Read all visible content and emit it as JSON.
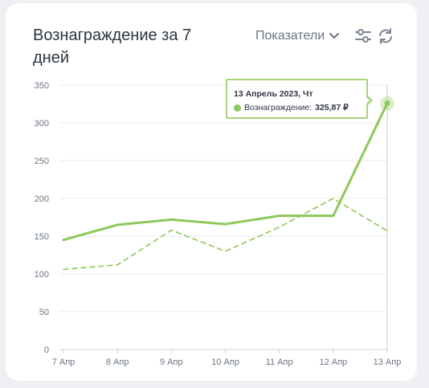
{
  "header": {
    "title": "Вознаграждение за 7 дней",
    "metrics_label": "Показатели"
  },
  "icons": {
    "metrics_chevron": "chevron-down-icon",
    "filter": "sliders-icon",
    "refresh": "refresh-icon"
  },
  "colors": {
    "accent": "#8cc95a",
    "grid": "#e8eaee",
    "axis_text": "#6b7585"
  },
  "tooltip": {
    "date": "13 Апрель 2023, Чт",
    "series_label": "Вознаграждение:",
    "value": "325,87 ₽"
  },
  "chart_data": {
    "type": "line",
    "categories": [
      "7 Апр",
      "8 Апр",
      "9 Апр",
      "10 Апр",
      "11 Апр",
      "12 Апр",
      "13 Апр"
    ],
    "series": [
      {
        "style": "solid",
        "values": [
          145,
          165,
          172,
          166,
          177,
          177,
          326
        ]
      },
      {
        "style": "dashed",
        "values": [
          106,
          112,
          158,
          130,
          162,
          200,
          157
        ]
      }
    ],
    "ylim": [
      0,
      350
    ],
    "yticks": [
      0,
      50,
      100,
      150,
      200,
      250,
      300,
      350
    ],
    "grid": true,
    "highlighted_index": 6
  }
}
